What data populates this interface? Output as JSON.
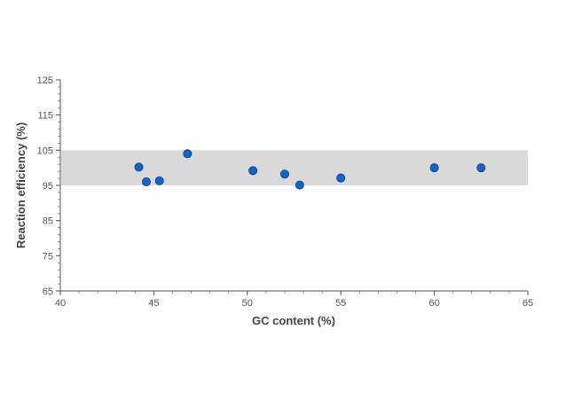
{
  "chart_data": {
    "type": "scatter",
    "title": "",
    "xlabel": "GC content (%)",
    "ylabel": "Reaction efficiency (%)",
    "xlim": [
      40,
      65
    ],
    "ylim": [
      65,
      125
    ],
    "xticks": [
      40,
      45,
      50,
      55,
      60,
      65
    ],
    "yticks": [
      65,
      75,
      85,
      95,
      105,
      115,
      125
    ],
    "x_minor_step": 1,
    "y_minor_step": 2,
    "grid": false,
    "legend": "none",
    "band": {
      "from": 95,
      "to": 105,
      "color": "#d9d9d9"
    },
    "series": [
      {
        "color": "#1565c0",
        "points": [
          {
            "x": 44.2,
            "y": 100.2
          },
          {
            "x": 44.6,
            "y": 96.0
          },
          {
            "x": 45.3,
            "y": 96.3
          },
          {
            "x": 46.8,
            "y": 104.0
          },
          {
            "x": 50.3,
            "y": 99.2
          },
          {
            "x": 52.0,
            "y": 98.2
          },
          {
            "x": 52.8,
            "y": 95.1
          },
          {
            "x": 55.0,
            "y": 97.1
          },
          {
            "x": 60.0,
            "y": 100.0
          },
          {
            "x": 62.5,
            "y": 100.0
          }
        ]
      }
    ]
  }
}
